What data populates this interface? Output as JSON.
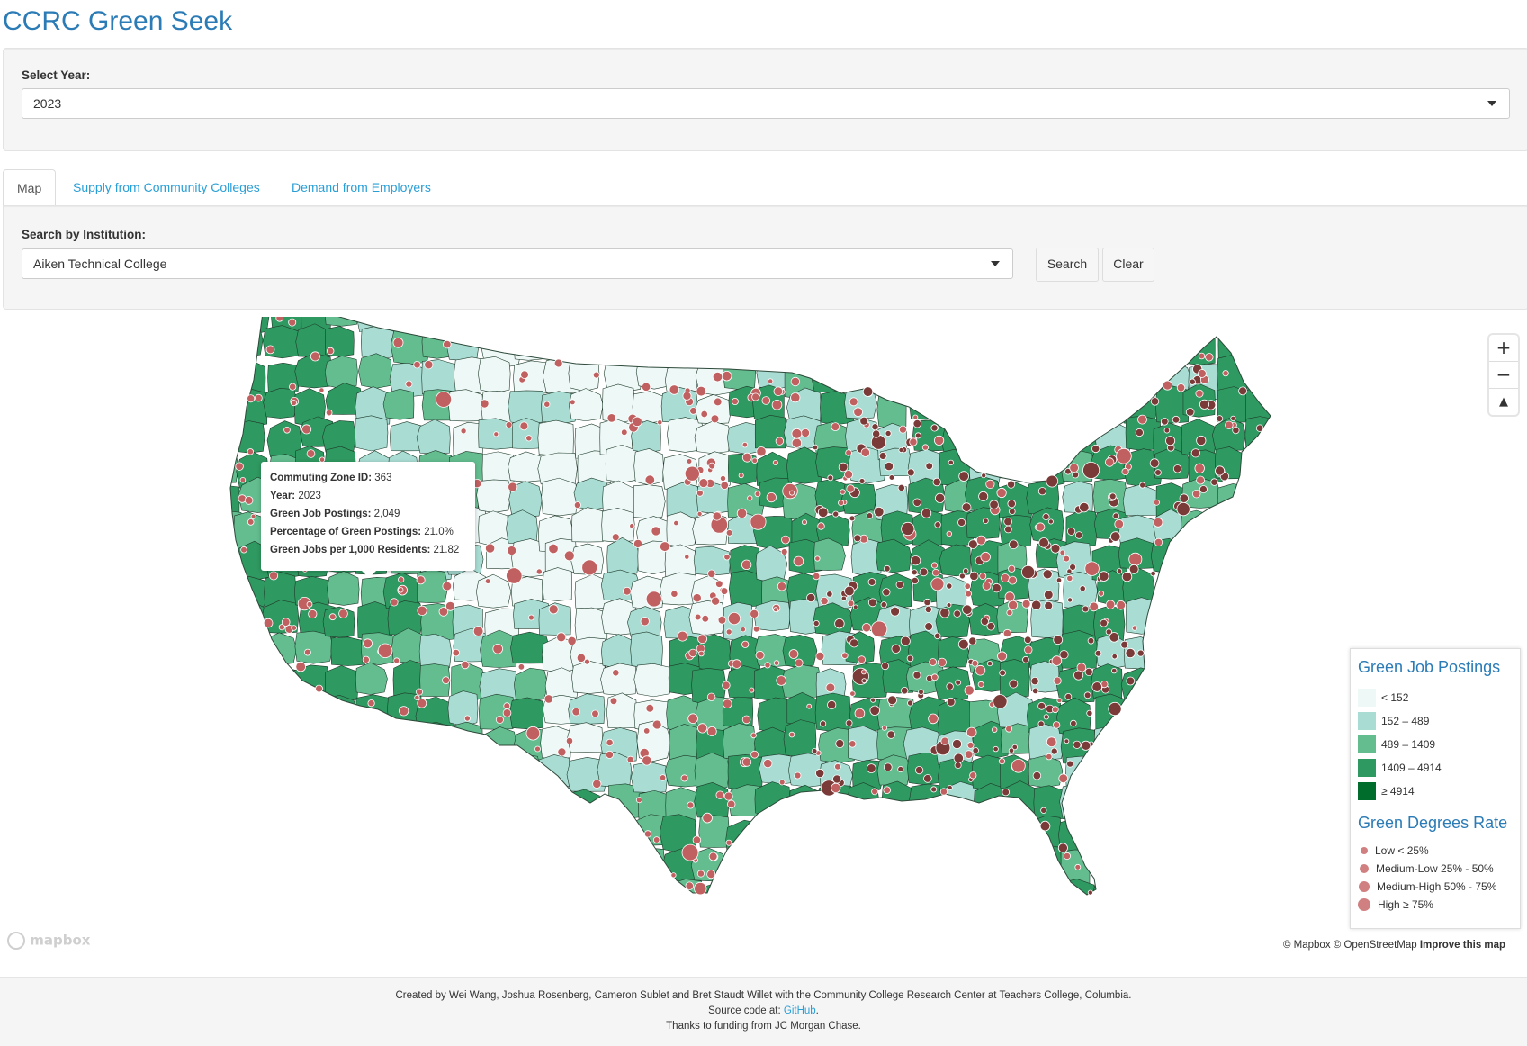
{
  "app": {
    "title": "CCRC Green Seek"
  },
  "year_control": {
    "label": "Select Year:",
    "selected": "2023"
  },
  "tabs": [
    {
      "label": "Map",
      "active": true
    },
    {
      "label": "Supply from Community Colleges",
      "active": false
    },
    {
      "label": "Demand from Employers",
      "active": false
    }
  ],
  "search_control": {
    "label": "Search by Institution:",
    "selected": "Aiken Technical College",
    "search_button": "Search",
    "clear_button": "Clear"
  },
  "map": {
    "zoom_in": "+",
    "zoom_out": "−",
    "compass": "▲",
    "colors": {
      "bin1": "#eef8f7",
      "bin2": "#a9dcd3",
      "bin3": "#63bd8f",
      "bin4": "#2e9960",
      "bin5": "#006d2c",
      "dot": "#c06060",
      "dot_outline": "#ffffff",
      "dark_dot": "#7a3a38"
    },
    "tooltip": {
      "zone_label": "Commuting Zone ID:",
      "zone_value": "363",
      "year_label": "Year:",
      "year_value": "2023",
      "postings_label": "Green Job Postings:",
      "postings_value": "2,049",
      "pct_label": "Percentage of Green Postings:",
      "pct_value": "21.0%",
      "per_capita_label": "Green Jobs per 1,000 Residents:",
      "per_capita_value": "21.82"
    },
    "legend": {
      "postings_title": "Green Job Postings",
      "postings_bins": [
        {
          "label": "< 152",
          "color": "#eef8f7"
        },
        {
          "label": "152 – 489",
          "color": "#a9dcd3"
        },
        {
          "label": "489 – 1409",
          "color": "#63bd8f"
        },
        {
          "label": "1409 – 4914",
          "color": "#2e9960"
        },
        {
          "label": "≥ 4914",
          "color": "#006d2c"
        }
      ],
      "degrees_title": "Green Degrees Rate",
      "degrees_bins": [
        {
          "label": "Low < 25%"
        },
        {
          "label": "Medium-Low 25% - 50%"
        },
        {
          "label": "Medium-High 50% - 75%"
        },
        {
          "label": "High ≥ 75%"
        }
      ]
    },
    "logo": "mapbox",
    "attribution": {
      "text": "© Mapbox © OpenStreetMap",
      "improve": "Improve this map"
    }
  },
  "footer": {
    "line1": "Created by Wei Wang, Joshua Rosenberg, Cameron Sublet and Bret Staudt Willet with the Community College Research Center at Teachers College, Columbia.",
    "line2_prefix": "Source code at: ",
    "line2_link": "GitHub",
    "line2_suffix": ".",
    "line3": "Thanks to funding from JC Morgan Chase."
  }
}
